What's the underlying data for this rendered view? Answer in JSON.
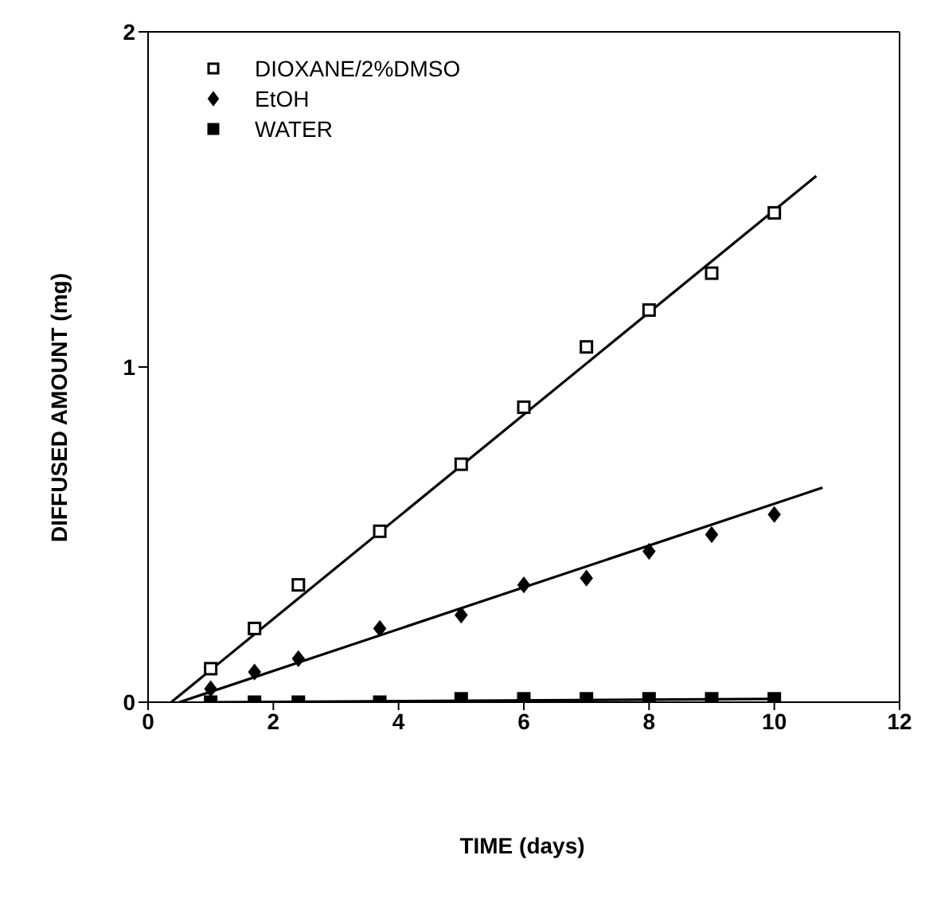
{
  "chart_data": {
    "type": "scatter",
    "xlabel": "TIME (days)",
    "ylabel": "DIFFUSED AMOUNT (mg)",
    "xlim": [
      0,
      12
    ],
    "ylim": [
      0,
      2
    ],
    "xticks": [
      0,
      2,
      4,
      6,
      8,
      10,
      12
    ],
    "yticks": [
      0,
      1,
      2
    ],
    "grid": false,
    "legend": "top left",
    "series": [
      {
        "name": "DIOXANE/2%DMSO",
        "color": "#000000",
        "marker": "square",
        "x": [
          1,
          1.7,
          2.4,
          3.7,
          5,
          6,
          7,
          8,
          9,
          10
        ],
        "values": [
          0.1,
          0.22,
          0.35,
          0.51,
          0.71,
          0.88,
          1.06,
          1.17,
          1.28,
          1.46
        ]
      },
      {
        "name": "EtOH",
        "color": "#000000",
        "marker": "diamond",
        "x": [
          1,
          1.7,
          2.4,
          3.7,
          5,
          6,
          7,
          8,
          9,
          10
        ],
        "values": [
          0.04,
          0.09,
          0.13,
          0.22,
          0.26,
          0.35,
          0.37,
          0.45,
          0.5,
          0.56
        ]
      },
      {
        "name": "WATER",
        "color": "#000000",
        "marker": "square",
        "x": [
          1,
          1.7,
          2.4,
          3.7,
          5,
          6,
          7,
          8,
          9,
          10
        ],
        "values": [
          0,
          0,
          0,
          0,
          0.01,
          0.01,
          0.01,
          0.01,
          0.01,
          0.01
        ]
      },
      {
        "type": "line",
        "color": "#000000",
        "marker": "none",
        "x": [
          0.37,
          10.67
        ],
        "values": [
          0,
          1.57
        ]
      },
      {
        "type": "line",
        "color": "#000000",
        "marker": "none",
        "x": [
          0.5,
          10.77
        ],
        "values": [
          0,
          0.64
        ]
      },
      {
        "type": "line",
        "color": "#000000",
        "marker": "none",
        "x": [
          1,
          10
        ],
        "values": [
          0,
          0.01
        ]
      }
    ]
  }
}
